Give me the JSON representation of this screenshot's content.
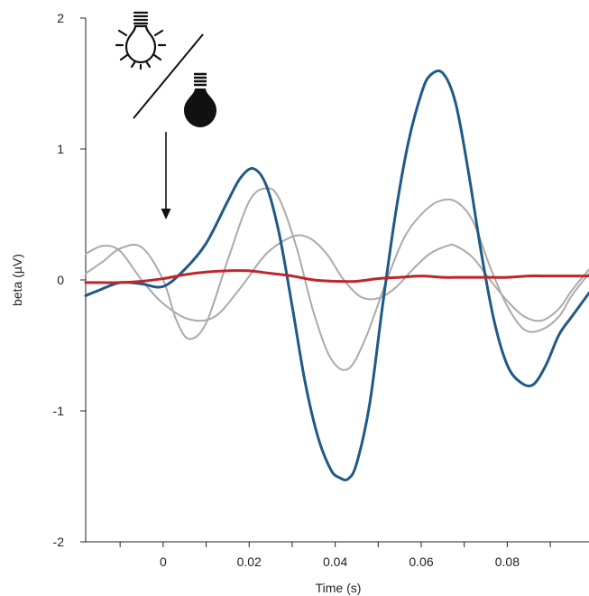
{
  "chart_data": {
    "type": "line",
    "xlabel": "Time  (s)",
    "ylabel": "beta (µV)",
    "xlim": [
      -0.018,
      0.099
    ],
    "ylim": [
      -2,
      2
    ],
    "xticks": [
      0,
      0.02,
      0.04,
      0.06,
      0.08
    ],
    "xtick_labels": [
      "0",
      "0.02",
      "0.04",
      "0.06",
      "0.08"
    ],
    "xminor_ticks": [
      -0.01,
      0.01,
      0.03,
      0.05,
      0.07,
      0.09
    ],
    "yticks": [
      2,
      1,
      0,
      -1,
      -2
    ],
    "ytick_labels": [
      "2",
      "1",
      "0",
      "-1",
      "-2"
    ],
    "stimulus_marker_x": 0,
    "icons": [
      "light-bulb-on-icon",
      "light-bulb-off-icon"
    ],
    "grid": false,
    "series": [
      {
        "color": "#1f5a87",
        "x": [
          -0.018,
          -0.015,
          -0.01,
          -0.005,
          0,
          0.005,
          0.01,
          0.015,
          0.018,
          0.021,
          0.024,
          0.027,
          0.03,
          0.033,
          0.036,
          0.039,
          0.041,
          0.043,
          0.045,
          0.048,
          0.051,
          0.054,
          0.057,
          0.06,
          0.062,
          0.065,
          0.068,
          0.071,
          0.074,
          0.077,
          0.08,
          0.083,
          0.086,
          0.089,
          0.092,
          0.095,
          0.099
        ],
        "values": [
          -0.12,
          -0.08,
          -0.02,
          -0.03,
          -0.05,
          0.08,
          0.28,
          0.6,
          0.78,
          0.85,
          0.72,
          0.35,
          -0.2,
          -0.78,
          -1.2,
          -1.45,
          -1.51,
          -1.52,
          -1.4,
          -0.95,
          -0.2,
          0.5,
          1.05,
          1.42,
          1.56,
          1.58,
          1.35,
          0.82,
          0.2,
          -0.32,
          -0.65,
          -0.78,
          -0.8,
          -0.65,
          -0.42,
          -0.28,
          -0.1
        ]
      },
      {
        "color": "#aaaaaa",
        "x": [
          -0.018,
          -0.014,
          -0.01,
          -0.005,
          0,
          0.003,
          0.006,
          0.01,
          0.015,
          0.02,
          0.024,
          0.027,
          0.031,
          0.035,
          0.039,
          0.043,
          0.047,
          0.052,
          0.056,
          0.06,
          0.064,
          0.068,
          0.072,
          0.076,
          0.08,
          0.084,
          0.088,
          0.092,
          0.095,
          0.099
        ],
        "values": [
          0.05,
          0.14,
          0.24,
          0.25,
          0.0,
          -0.3,
          -0.45,
          -0.33,
          0.15,
          0.6,
          0.7,
          0.62,
          0.25,
          -0.25,
          -0.6,
          -0.68,
          -0.45,
          0.0,
          0.32,
          0.5,
          0.6,
          0.6,
          0.45,
          0.1,
          -0.2,
          -0.38,
          -0.38,
          -0.28,
          -0.12,
          0.05
        ]
      },
      {
        "color": "#aaaaaa",
        "x": [
          -0.018,
          -0.014,
          -0.01,
          -0.005,
          0,
          0.006,
          0.012,
          0.018,
          0.024,
          0.03,
          0.034,
          0.038,
          0.042,
          0.046,
          0.05,
          0.054,
          0.058,
          0.062,
          0.066,
          0.068,
          0.072,
          0.076,
          0.08,
          0.084,
          0.088,
          0.092,
          0.095,
          0.099
        ],
        "values": [
          0.2,
          0.26,
          0.22,
          0.0,
          -0.18,
          -0.3,
          -0.28,
          -0.06,
          0.2,
          0.33,
          0.32,
          0.2,
          0.0,
          -0.13,
          -0.14,
          -0.06,
          0.08,
          0.2,
          0.26,
          0.26,
          0.17,
          0.0,
          -0.16,
          -0.28,
          -0.31,
          -0.22,
          -0.08,
          0.08
        ]
      },
      {
        "color": "#c0252c",
        "x": [
          -0.018,
          -0.01,
          -0.005,
          0,
          0.005,
          0.01,
          0.015,
          0.02,
          0.025,
          0.03,
          0.035,
          0.04,
          0.045,
          0.05,
          0.055,
          0.06,
          0.065,
          0.07,
          0.075,
          0.08,
          0.085,
          0.09,
          0.095,
          0.099
        ],
        "values": [
          -0.02,
          -0.02,
          -0.01,
          0.01,
          0.04,
          0.06,
          0.07,
          0.07,
          0.05,
          0.03,
          0.0,
          -0.01,
          -0.01,
          0.01,
          0.02,
          0.03,
          0.02,
          0.02,
          0.02,
          0.02,
          0.03,
          0.03,
          0.03,
          0.03
        ]
      }
    ]
  }
}
